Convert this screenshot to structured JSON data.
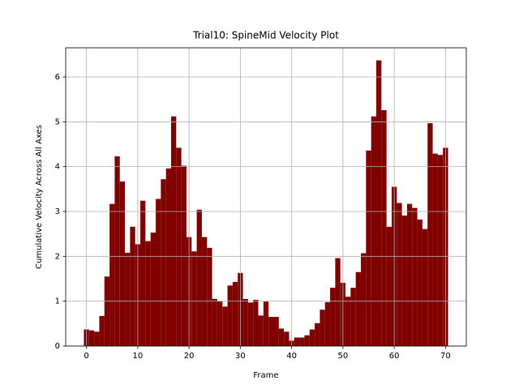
{
  "chart_data": {
    "type": "bar",
    "title": "Trial10: SpineMid Velocity Plot",
    "xlabel": "Frame",
    "ylabel": "Cumulative Velocity Across All Axes",
    "x": [
      0,
      1,
      2,
      3,
      4,
      5,
      6,
      7,
      8,
      9,
      10,
      11,
      12,
      13,
      14,
      15,
      16,
      17,
      18,
      19,
      20,
      21,
      22,
      23,
      24,
      25,
      26,
      27,
      28,
      29,
      30,
      31,
      32,
      33,
      34,
      35,
      36,
      37,
      38,
      39,
      40,
      41,
      42,
      43,
      44,
      45,
      46,
      47,
      48,
      49,
      50,
      51,
      52,
      53,
      54,
      55,
      56,
      57,
      58,
      59,
      60,
      61,
      62,
      63,
      64,
      65,
      66,
      67,
      68,
      69,
      70
    ],
    "values": [
      0.37,
      0.35,
      0.32,
      0.67,
      1.55,
      3.17,
      4.23,
      3.67,
      2.08,
      2.66,
      2.27,
      3.24,
      2.34,
      2.53,
      3.28,
      3.72,
      3.96,
      5.12,
      4.42,
      4.02,
      2.43,
      2.11,
      3.04,
      2.43,
      2.19,
      1.05,
      1.0,
      0.88,
      1.35,
      1.43,
      1.63,
      1.05,
      0.97,
      1.03,
      0.68,
      0.99,
      0.65,
      0.65,
      0.39,
      0.32,
      0.12,
      0.19,
      0.19,
      0.24,
      0.37,
      0.51,
      0.81,
      0.98,
      1.3,
      1.96,
      1.41,
      1.1,
      1.3,
      1.65,
      2.07,
      4.36,
      5.12,
      6.37,
      5.26,
      2.66,
      3.55,
      3.19,
      2.91,
      3.17,
      3.08,
      2.82,
      2.61,
      4.97,
      4.29,
      4.26,
      4.42
    ],
    "color": "#800000",
    "xlim": [
      -4.05,
      74.05
    ],
    "xticks": [
      0,
      10,
      20,
      30,
      40,
      50,
      60,
      70
    ],
    "ylim": [
      0,
      6.65
    ],
    "yticks": [
      0,
      1,
      2,
      3,
      4,
      5,
      6
    ],
    "grid": true
  }
}
